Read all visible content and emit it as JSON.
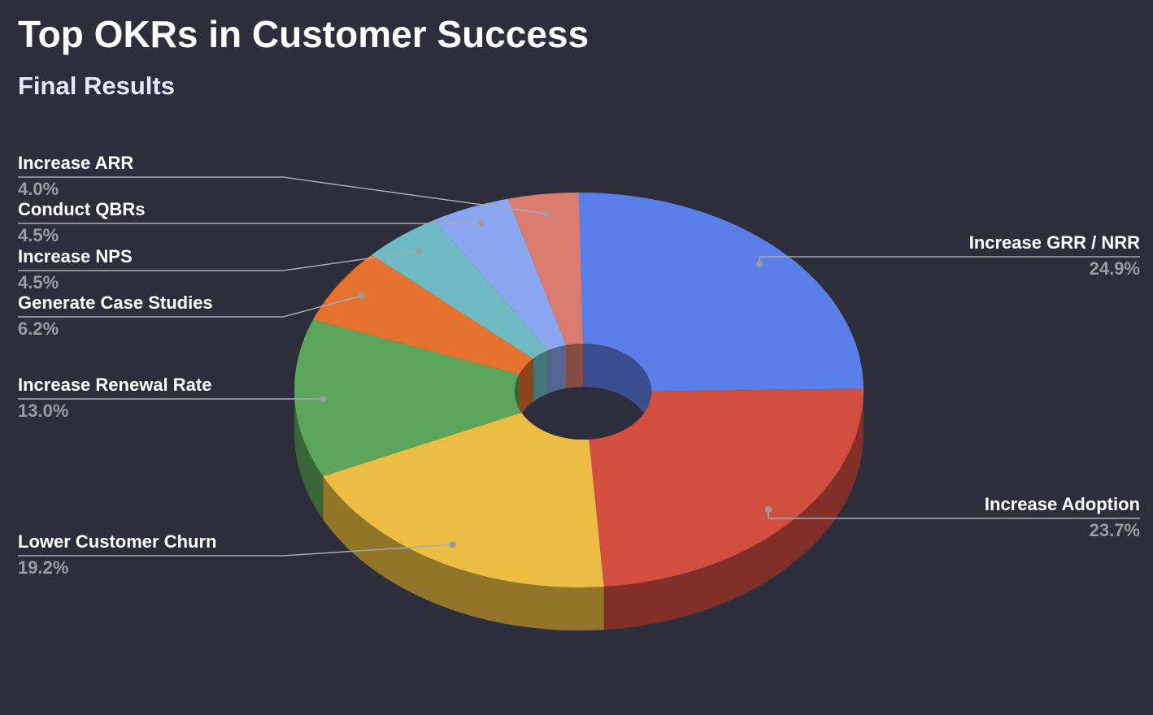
{
  "chart_data": {
    "type": "pie",
    "donut": true,
    "three_d": true,
    "title": "Top OKRs in Customer Success",
    "subtitle": "Final Results",
    "categories": [
      "Increase GRR / NRR",
      "Increase Adoption",
      "Lower Customer Churn",
      "Increase Renewal Rate",
      "Generate Case Studies",
      "Increase NPS",
      "Conduct QBRs",
      "Increase ARR"
    ],
    "values": [
      24.9,
      23.7,
      19.2,
      13.0,
      6.2,
      4.5,
      4.5,
      4.0
    ],
    "value_labels": [
      "24.9%",
      "23.7%",
      "19.2%",
      "13.0%",
      "6.2%",
      "4.5%",
      "4.5%",
      "4.0%"
    ],
    "colors": [
      "#5b7fe8",
      "#d24f40",
      "#ecbd43",
      "#5ba65a",
      "#e5722e",
      "#6fbac2",
      "#8aa6f0",
      "#d97b6f"
    ]
  }
}
